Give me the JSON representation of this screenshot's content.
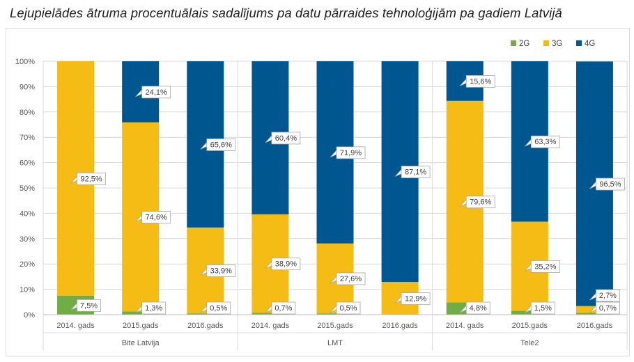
{
  "title": "Lejupielādes ātruma procentuālais sadalījums pa datu pārraides tehnoloģijām pa gadiem Latvijā",
  "chart_data": {
    "type": "bar",
    "stacked": true,
    "yticks": [
      "0%",
      "10%",
      "20%",
      "30%",
      "40%",
      "50%",
      "60%",
      "70%",
      "80%",
      "90%",
      "100%"
    ],
    "ylim": [
      0,
      100
    ],
    "groups": [
      {
        "name": "Bite Latvija",
        "categories": [
          "2014. gads",
          "2015.gads",
          "2016.gads"
        ]
      },
      {
        "name": "LMT",
        "categories": [
          "2014. gads",
          "2015.gads",
          "2016.gads"
        ]
      },
      {
        "name": "Tele2",
        "categories": [
          "2014. gads",
          "2015.gads",
          "2016.gads"
        ]
      }
    ],
    "series": [
      {
        "name": "2G",
        "color": "#70ad47",
        "values": [
          7.5,
          1.3,
          0.5,
          0.7,
          0.5,
          0,
          4.8,
          1.5,
          0.7
        ],
        "labels": [
          "7,5%",
          "1,3%",
          "0,5%",
          "0,7%",
          "0,5%",
          "",
          "4,8%",
          "1,5%",
          "0,7%"
        ]
      },
      {
        "name": "3G",
        "color": "#f5bc16",
        "values": [
          92.5,
          74.6,
          33.9,
          38.9,
          27.6,
          12.9,
          79.6,
          35.2,
          2.7
        ],
        "labels": [
          "92,5%",
          "74,6%",
          "33,9%",
          "38,9%",
          "27,6%",
          "12,9%",
          "79,6%",
          "35,2%",
          "2,7%"
        ]
      },
      {
        "name": "4G",
        "color": "#00578f",
        "values": [
          0,
          24.1,
          65.6,
          60.4,
          71.9,
          87.1,
          15.6,
          63.3,
          96.5
        ],
        "labels": [
          "",
          "24,1%",
          "65,6%",
          "60,4%",
          "71,9%",
          "87,1%",
          "15,6%",
          "63,3%",
          "96,5%"
        ]
      }
    ],
    "legend": {
      "position": "top-right"
    },
    "grid": true
  }
}
